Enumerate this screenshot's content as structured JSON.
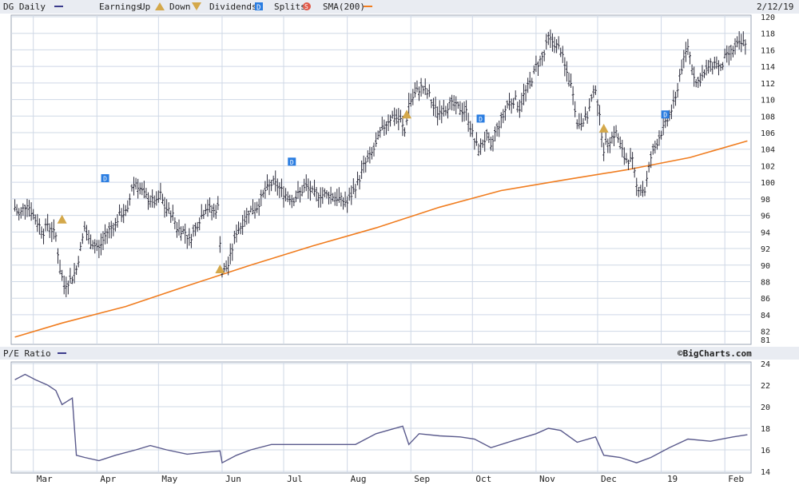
{
  "legend": {
    "symbol": "DG Daily",
    "earnings_label": "Earnings",
    "up_label": "Up",
    "down_label": "Down",
    "dividends_label": "Dividends",
    "splits_label": "Splits",
    "sma_label": "SMA(200)",
    "date": "2/12/19",
    "dividend_marker": "D",
    "split_marker": "S"
  },
  "pe_panel": {
    "title": "P/E Ratio",
    "credit": "©BigCharts.com"
  },
  "colors": {
    "price_bars": "#2b2b3a",
    "sma": "#f07c1e",
    "pe_line": "#5a5a8c",
    "dividend_marker": "#2a7de1",
    "earnings_up": "#d4a84a",
    "splits": "#e05a4a",
    "grid": "#cfd8e6",
    "header_bg": "#e9ecf2"
  },
  "chart_data": [
    {
      "type": "ohlc",
      "title": "DG Daily",
      "x_axis_labels": [
        "Mar",
        "Apr",
        "May",
        "Jun",
        "Jul",
        "Aug",
        "Sep",
        "Oct",
        "Nov",
        "Dec",
        "19",
        "Feb"
      ],
      "y_ticks": [
        81,
        82,
        84,
        86,
        88,
        90,
        92,
        94,
        96,
        98,
        100,
        102,
        104,
        106,
        108,
        110,
        112,
        114,
        116,
        118,
        120
      ],
      "ylim": [
        81,
        120
      ],
      "grid": true,
      "series": [
        {
          "name": "DG Daily",
          "points": [
            [
              "2018-02-20",
              97.0
            ],
            [
              "2018-02-22",
              96.0
            ],
            [
              "2018-02-26",
              97.5
            ],
            [
              "2018-02-28",
              96.5
            ],
            [
              "2018-03-02",
              95.5
            ],
            [
              "2018-03-06",
              94.0
            ],
            [
              "2018-03-08",
              95.0
            ],
            [
              "2018-03-12",
              93.5
            ],
            [
              "2018-03-14",
              89.5
            ],
            [
              "2018-03-16",
              87.5
            ],
            [
              "2018-03-20",
              88.5
            ],
            [
              "2018-03-22",
              89.5
            ],
            [
              "2018-03-26",
              94.5
            ],
            [
              "2018-03-28",
              93.0
            ],
            [
              "2018-04-02",
              92.0
            ],
            [
              "2018-04-04",
              93.0
            ],
            [
              "2018-04-06",
              94.0
            ],
            [
              "2018-04-10",
              95.0
            ],
            [
              "2018-04-12",
              96.0
            ],
            [
              "2018-04-16",
              96.5
            ],
            [
              "2018-04-18",
              99.5
            ],
            [
              "2018-04-20",
              100.0
            ],
            [
              "2018-04-24",
              98.5
            ],
            [
              "2018-04-26",
              98.0
            ],
            [
              "2018-04-30",
              97.5
            ],
            [
              "2018-05-02",
              98.5
            ],
            [
              "2018-05-04",
              97.0
            ],
            [
              "2018-05-08",
              96.0
            ],
            [
              "2018-05-10",
              94.5
            ],
            [
              "2018-05-14",
              94.0
            ],
            [
              "2018-05-16",
              93.0
            ],
            [
              "2018-05-18",
              94.0
            ],
            [
              "2018-05-22",
              96.0
            ],
            [
              "2018-05-24",
              97.0
            ],
            [
              "2018-05-28",
              96.5
            ],
            [
              "2018-05-30",
              97.0
            ],
            [
              "2018-06-01",
              89.0
            ],
            [
              "2018-06-04",
              90.0
            ],
            [
              "2018-06-06",
              92.0
            ],
            [
              "2018-06-08",
              94.0
            ],
            [
              "2018-06-12",
              95.5
            ],
            [
              "2018-06-14",
              96.5
            ],
            [
              "2018-06-18",
              97.0
            ],
            [
              "2018-06-20",
              98.0
            ],
            [
              "2018-06-22",
              99.0
            ],
            [
              "2018-06-26",
              100.0
            ],
            [
              "2018-06-28",
              99.5
            ],
            [
              "2018-07-02",
              98.5
            ],
            [
              "2018-07-06",
              98.0
            ],
            [
              "2018-07-10",
              99.0
            ],
            [
              "2018-07-12",
              99.5
            ],
            [
              "2018-07-16",
              98.5
            ],
            [
              "2018-07-20",
              98.5
            ],
            [
              "2018-07-24",
              98.5
            ],
            [
              "2018-07-28",
              98.0
            ],
            [
              "2018-08-01",
              97.5
            ],
            [
              "2018-08-03",
              98.5
            ],
            [
              "2018-08-07",
              100.5
            ],
            [
              "2018-08-09",
              102.0
            ],
            [
              "2018-08-13",
              103.5
            ],
            [
              "2018-08-15",
              104.5
            ],
            [
              "2018-08-17",
              106.0
            ],
            [
              "2018-08-21",
              107.5
            ],
            [
              "2018-08-23",
              108.0
            ],
            [
              "2018-08-27",
              107.5
            ],
            [
              "2018-08-29",
              106.0
            ],
            [
              "2018-08-31",
              109.5
            ],
            [
              "2018-09-04",
              111.0
            ],
            [
              "2018-09-06",
              111.5
            ],
            [
              "2018-09-10",
              110.5
            ],
            [
              "2018-09-12",
              109.0
            ],
            [
              "2018-09-14",
              108.5
            ],
            [
              "2018-09-18",
              109.0
            ],
            [
              "2018-09-20",
              109.5
            ],
            [
              "2018-09-24",
              109.0
            ],
            [
              "2018-09-28",
              108.5
            ],
            [
              "2018-10-02",
              105.0
            ],
            [
              "2018-10-04",
              104.0
            ],
            [
              "2018-10-08",
              105.5
            ],
            [
              "2018-10-10",
              104.0
            ],
            [
              "2018-10-12",
              106.0
            ],
            [
              "2018-10-16",
              108.0
            ],
            [
              "2018-10-18",
              109.5
            ],
            [
              "2018-10-22",
              110.0
            ],
            [
              "2018-10-24",
              109.0
            ],
            [
              "2018-10-26",
              110.5
            ],
            [
              "2018-10-30",
              112.5
            ],
            [
              "2018-11-01",
              114.0
            ],
            [
              "2018-11-05",
              115.5
            ],
            [
              "2018-11-07",
              117.5
            ],
            [
              "2018-11-09",
              117.0
            ],
            [
              "2018-11-13",
              116.0
            ],
            [
              "2018-11-15",
              114.0
            ],
            [
              "2018-11-19",
              111.0
            ],
            [
              "2018-11-21",
              107.0
            ],
            [
              "2018-11-26",
              108.0
            ],
            [
              "2018-11-28",
              110.0
            ],
            [
              "2018-11-30",
              111.5
            ],
            [
              "2018-12-04",
              104.0
            ],
            [
              "2018-12-06",
              105.0
            ],
            [
              "2018-12-10",
              106.0
            ],
            [
              "2018-12-12",
              104.5
            ],
            [
              "2018-12-14",
              103.0
            ],
            [
              "2018-12-18",
              102.5
            ],
            [
              "2018-12-20",
              99.5
            ],
            [
              "2018-12-24",
              99.0
            ],
            [
              "2018-12-27",
              103.0
            ],
            [
              "2018-12-31",
              105.5
            ],
            [
              "2019-01-04",
              107.5
            ],
            [
              "2019-01-08",
              110.0
            ],
            [
              "2019-01-10",
              113.0
            ],
            [
              "2019-01-14",
              116.5
            ],
            [
              "2019-01-16",
              114.0
            ],
            [
              "2019-01-18",
              112.0
            ],
            [
              "2019-01-22",
              113.0
            ],
            [
              "2019-01-24",
              114.0
            ],
            [
              "2019-01-28",
              114.5
            ],
            [
              "2019-01-30",
              113.5
            ],
            [
              "2019-02-01",
              115.0
            ],
            [
              "2019-02-05",
              116.0
            ],
            [
              "2019-02-07",
              116.5
            ],
            [
              "2019-02-11",
              117.0
            ],
            [
              "2019-02-12",
              118.0
            ]
          ]
        },
        {
          "name": "SMA(200)",
          "points": [
            [
              "2018-02-20",
              81.3
            ],
            [
              "2018-03-15",
              83.0
            ],
            [
              "2018-04-15",
              85.0
            ],
            [
              "2018-05-15",
              87.5
            ],
            [
              "2018-06-15",
              90.0
            ],
            [
              "2018-07-15",
              92.3
            ],
            [
              "2018-08-15",
              94.5
            ],
            [
              "2018-09-15",
              97.0
            ],
            [
              "2018-10-15",
              99.0
            ],
            [
              "2018-11-15",
              100.3
            ],
            [
              "2018-12-15",
              101.5
            ],
            [
              "2019-01-15",
              103.0
            ],
            [
              "2019-02-12",
              105.0
            ]
          ]
        }
      ],
      "events": [
        {
          "type": "earnings_up",
          "date": "2018-03-15",
          "y": 95.5
        },
        {
          "type": "dividend",
          "date": "2018-04-05",
          "y": 100.5
        },
        {
          "type": "earnings_up",
          "date": "2018-05-31",
          "y": 89.5
        },
        {
          "type": "dividend",
          "date": "2018-07-05",
          "y": 102.5
        },
        {
          "type": "earnings_up",
          "date": "2018-08-30",
          "y": 108.2
        },
        {
          "type": "dividend",
          "date": "2018-10-05",
          "y": 107.7
        },
        {
          "type": "earnings_up",
          "date": "2018-12-04",
          "y": 106.5
        },
        {
          "type": "dividend",
          "date": "2019-01-03",
          "y": 108.2
        }
      ]
    },
    {
      "type": "line",
      "title": "P/E Ratio",
      "y_ticks": [
        14,
        16,
        18,
        20,
        22,
        24
      ],
      "ylim": [
        14,
        24
      ],
      "grid": true,
      "series": [
        {
          "name": "P/E Ratio",
          "points": [
            [
              "2018-02-20",
              22.5
            ],
            [
              "2018-02-25",
              23.0
            ],
            [
              "2018-03-02",
              22.5
            ],
            [
              "2018-03-08",
              22.0
            ],
            [
              "2018-03-12",
              21.5
            ],
            [
              "2018-03-15",
              20.2
            ],
            [
              "2018-03-20",
              20.8
            ],
            [
              "2018-03-22",
              15.5
            ],
            [
              "2018-03-26",
              15.3
            ],
            [
              "2018-04-02",
              15.0
            ],
            [
              "2018-04-10",
              15.5
            ],
            [
              "2018-04-20",
              16.0
            ],
            [
              "2018-04-27",
              16.4
            ],
            [
              "2018-05-05",
              16.0
            ],
            [
              "2018-05-15",
              15.6
            ],
            [
              "2018-05-25",
              15.8
            ],
            [
              "2018-05-31",
              15.9
            ],
            [
              "2018-06-01",
              14.8
            ],
            [
              "2018-06-08",
              15.5
            ],
            [
              "2018-06-15",
              16.0
            ],
            [
              "2018-06-25",
              16.5
            ],
            [
              "2018-07-05",
              16.5
            ],
            [
              "2018-07-15",
              16.5
            ],
            [
              "2018-07-25",
              16.5
            ],
            [
              "2018-08-05",
              16.5
            ],
            [
              "2018-08-15",
              17.5
            ],
            [
              "2018-08-28",
              18.2
            ],
            [
              "2018-08-31",
              16.5
            ],
            [
              "2018-09-05",
              17.5
            ],
            [
              "2018-09-15",
              17.3
            ],
            [
              "2018-09-25",
              17.2
            ],
            [
              "2018-10-02",
              17.0
            ],
            [
              "2018-10-10",
              16.2
            ],
            [
              "2018-10-20",
              16.8
            ],
            [
              "2018-11-01",
              17.5
            ],
            [
              "2018-11-07",
              18.0
            ],
            [
              "2018-11-13",
              17.8
            ],
            [
              "2018-11-21",
              16.7
            ],
            [
              "2018-11-30",
              17.2
            ],
            [
              "2018-12-04",
              15.5
            ],
            [
              "2018-12-12",
              15.3
            ],
            [
              "2018-12-20",
              14.8
            ],
            [
              "2018-12-27",
              15.3
            ],
            [
              "2019-01-05",
              16.2
            ],
            [
              "2019-01-14",
              17.0
            ],
            [
              "2019-01-25",
              16.8
            ],
            [
              "2019-02-05",
              17.2
            ],
            [
              "2019-02-12",
              17.4
            ]
          ]
        }
      ]
    }
  ]
}
